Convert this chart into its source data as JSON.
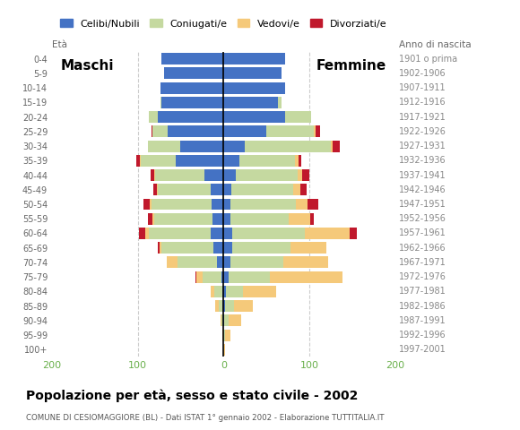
{
  "age_groups": [
    "100+",
    "95-99",
    "90-94",
    "85-89",
    "80-84",
    "75-79",
    "70-74",
    "65-69",
    "60-64",
    "55-59",
    "50-54",
    "45-49",
    "40-44",
    "35-39",
    "30-34",
    "25-29",
    "20-24",
    "15-19",
    "10-14",
    "5-9",
    "0-4"
  ],
  "birth_years": [
    "1901 o prima",
    "1902-1906",
    "1907-1911",
    "1912-1916",
    "1917-1921",
    "1922-1926",
    "1927-1931",
    "1932-1936",
    "1937-1941",
    "1942-1946",
    "1947-1951",
    "1952-1956",
    "1957-1961",
    "1962-1966",
    "1967-1971",
    "1972-1976",
    "1977-1981",
    "1982-1986",
    "1987-1991",
    "1992-1996",
    "1997-2001"
  ],
  "males": {
    "celibe": [
      0,
      0,
      0,
      1,
      1,
      2,
      8,
      12,
      15,
      13,
      14,
      15,
      22,
      56,
      51,
      65,
      77,
      72,
      74,
      69,
      72
    ],
    "coniugato": [
      0,
      0,
      2,
      5,
      10,
      22,
      46,
      60,
      72,
      68,
      70,
      62,
      58,
      41,
      37,
      18,
      10,
      2,
      0,
      0,
      0
    ],
    "vedovo": [
      0,
      1,
      2,
      4,
      4,
      8,
      12,
      3,
      4,
      2,
      2,
      1,
      1,
      1,
      0,
      0,
      0,
      0,
      0,
      0,
      0
    ],
    "divorziato": [
      0,
      0,
      0,
      0,
      0,
      1,
      0,
      2,
      8,
      5,
      7,
      4,
      4,
      4,
      0,
      1,
      0,
      0,
      0,
      0,
      0
    ]
  },
  "females": {
    "celibe": [
      0,
      0,
      1,
      2,
      3,
      6,
      8,
      10,
      10,
      8,
      8,
      9,
      14,
      18,
      25,
      50,
      72,
      63,
      72,
      68,
      72
    ],
    "coniugato": [
      0,
      2,
      5,
      10,
      20,
      48,
      62,
      68,
      85,
      68,
      76,
      72,
      72,
      65,
      100,
      55,
      30,
      5,
      0,
      0,
      0
    ],
    "vedovo": [
      2,
      6,
      15,
      22,
      38,
      85,
      52,
      42,
      52,
      25,
      14,
      8,
      6,
      4,
      2,
      2,
      0,
      0,
      0,
      0,
      0
    ],
    "divorziato": [
      0,
      0,
      0,
      0,
      0,
      0,
      0,
      0,
      8,
      4,
      12,
      8,
      8,
      4,
      8,
      5,
      0,
      0,
      0,
      0,
      0
    ]
  },
  "colors": {
    "celibe": "#4472C4",
    "coniugato": "#C5D9A0",
    "vedovo": "#F5C97A",
    "divorziato": "#C0182C"
  },
  "legend_labels": [
    "Celibi/Nubili",
    "Coniugati/e",
    "Vedovi/e",
    "Divorziati/e"
  ],
  "title": "Popolazione per età, sesso e stato civile - 2002",
  "subtitle": "COMUNE DI CESIOMAGGIORE (BL) - Dati ISTAT 1° gennaio 2002 - Elaborazione TUTTITALIA.IT",
  "label_left": "Maschi",
  "label_right": "Femmine",
  "ylabel_left": "Età",
  "ylabel_right": "Anno di nascita",
  "xlim": 200,
  "xtick_color": "#6AB04C",
  "background_color": "#ffffff",
  "grid_color": "#cccccc",
  "tick_label_color": "#666666",
  "birth_year_color": "#888888",
  "title_color": "#000000",
  "subtitle_color": "#555555"
}
